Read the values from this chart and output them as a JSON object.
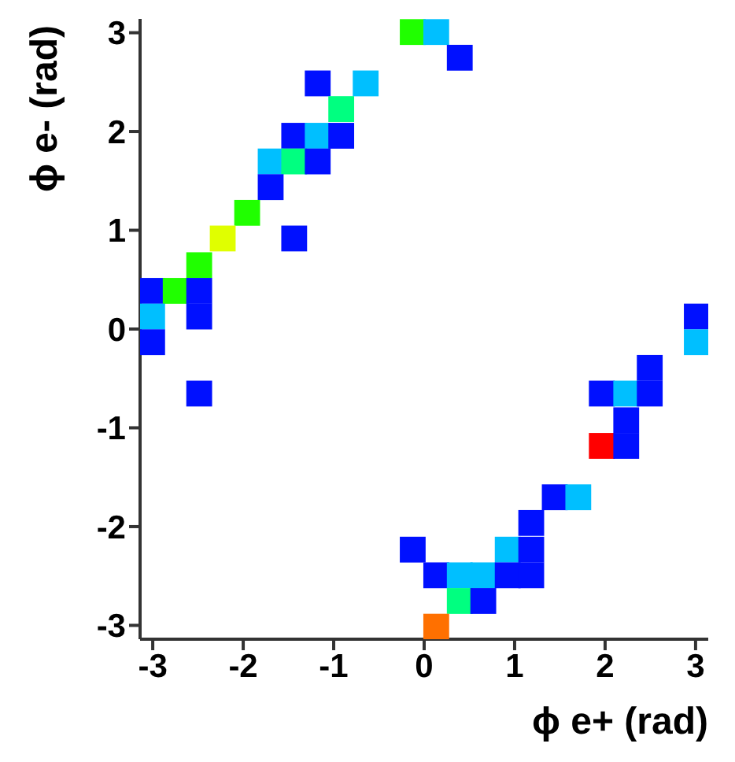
{
  "chart_data": {
    "type": "scatter",
    "xlabel": "ϕ e+ (rad)",
    "ylabel": "ϕ e- (rad)",
    "marker": "square",
    "legend": false,
    "grid": false,
    "xlim": [
      -3.14,
      3.14
    ],
    "ylim": [
      -3.14,
      3.14
    ],
    "xticks": [
      -3,
      -2,
      -1,
      0,
      1,
      2,
      3
    ],
    "yticks": [
      -3,
      -2,
      -1,
      0,
      1,
      2,
      3
    ],
    "x": [
      -0.13,
      0.13,
      0.39,
      -1.18,
      -0.65,
      -0.92,
      -1.44,
      -1.18,
      -0.92,
      -1.7,
      -1.44,
      -1.18,
      -1.7,
      -1.96,
      -2.23,
      -1.44,
      -2.49,
      -3.01,
      -2.75,
      -2.49,
      -3.01,
      -2.49,
      3.01,
      -3.01,
      3.01,
      2.49,
      1.96,
      2.23,
      2.49,
      -2.49,
      2.23,
      1.96,
      2.23,
      1.44,
      1.7,
      1.18,
      0.92,
      1.18,
      -0.13,
      0.13,
      0.39,
      0.65,
      0.92,
      1.18,
      0.39,
      0.65,
      0.13
    ],
    "values": [
      3.01,
      3.01,
      2.75,
      2.49,
      2.49,
      2.23,
      1.96,
      1.96,
      1.96,
      1.7,
      1.7,
      1.7,
      1.44,
      1.18,
      0.92,
      0.92,
      0.65,
      0.39,
      0.39,
      0.39,
      0.13,
      0.13,
      0.13,
      -0.13,
      -0.13,
      -0.39,
      -0.65,
      -0.65,
      -0.65,
      -0.65,
      -0.92,
      -1.18,
      -1.18,
      -1.7,
      -1.7,
      -1.96,
      -2.23,
      -2.23,
      -2.23,
      -2.49,
      -2.49,
      -2.49,
      -2.49,
      -2.49,
      -2.75,
      -2.75,
      -3.01
    ],
    "colors": [
      "#20ff00",
      "#00bfff",
      "#0010ff",
      "#0010ff",
      "#00bfff",
      "#00ff80",
      "#0010ff",
      "#00bfff",
      "#0010ff",
      "#00bfff",
      "#00ff80",
      "#0010ff",
      "#0010ff",
      "#20ff00",
      "#e0ff00",
      "#0010ff",
      "#20ff00",
      "#0010ff",
      "#20ff00",
      "#0010ff",
      "#00bfff",
      "#0010ff",
      "#0010ff",
      "#0010ff",
      "#00bfff",
      "#0010ff",
      "#0010ff",
      "#00bfff",
      "#0010ff",
      "#0010ff",
      "#0010ff",
      "#ff0000",
      "#0010ff",
      "#0010ff",
      "#00bfff",
      "#0010ff",
      "#00bfff",
      "#0010ff",
      "#0010ff",
      "#0010ff",
      "#00bfff",
      "#00bfff",
      "#0010ff",
      "#0010ff",
      "#00ff80",
      "#0010ff",
      "#ff7000"
    ]
  }
}
